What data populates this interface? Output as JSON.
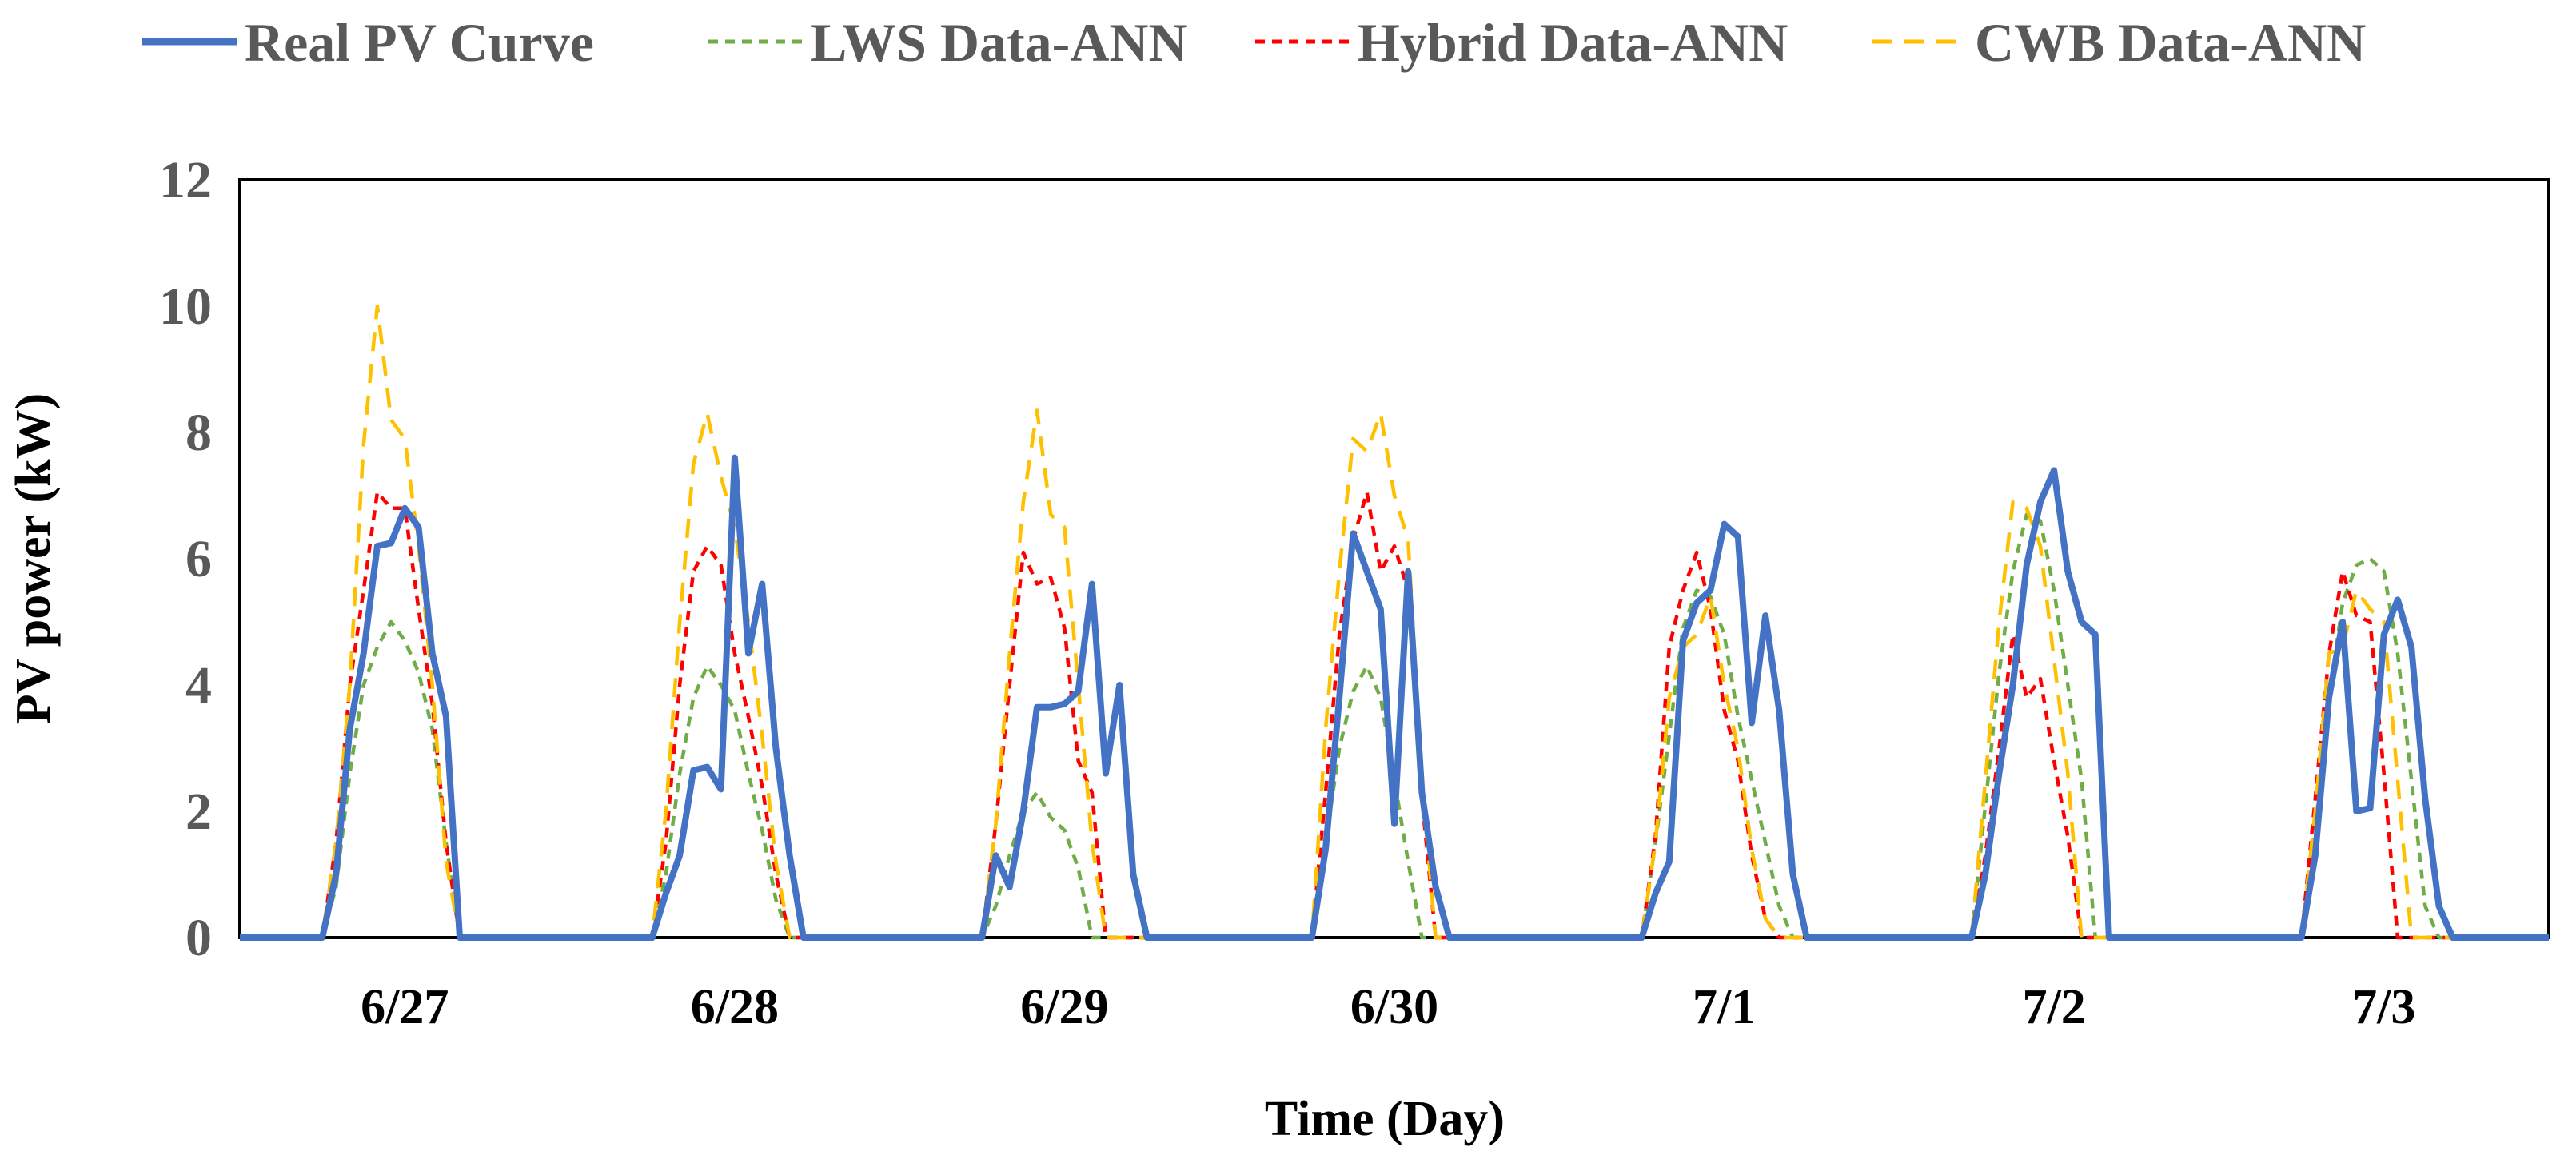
{
  "chart_data": {
    "type": "line",
    "title": "",
    "xlabel": "Time (Day)",
    "ylabel": "PV power (kW)",
    "ylim": [
      0,
      12
    ],
    "yticks": [
      "0",
      "2",
      "4",
      "6",
      "8",
      "10",
      "12"
    ],
    "xlim": [
      0,
      168
    ],
    "categories": [
      "6/27",
      "6/28",
      "6/29",
      "6/30",
      "7/1",
      "7/2",
      "7/3"
    ],
    "grid": false,
    "legend": "top",
    "series": [
      {
        "name": "Real PV Curve",
        "color": "#4472C4",
        "style": "solid",
        "points": [
          [
            0,
            0
          ],
          [
            6,
            0
          ],
          [
            7,
            1
          ],
          [
            8,
            3.3
          ],
          [
            9,
            4.5
          ],
          [
            10,
            6.2
          ],
          [
            11,
            6.25
          ],
          [
            12,
            6.8
          ],
          [
            13,
            6.5
          ],
          [
            14,
            4.5
          ],
          [
            15,
            3.5
          ],
          [
            16,
            0
          ],
          [
            24,
            0
          ],
          [
            30,
            0
          ],
          [
            31,
            0.7
          ],
          [
            32,
            1.3
          ],
          [
            33,
            2.65
          ],
          [
            34,
            2.7
          ],
          [
            35,
            2.35
          ],
          [
            36,
            7.6
          ],
          [
            37,
            4.5
          ],
          [
            38,
            5.6
          ],
          [
            39,
            3
          ],
          [
            40,
            1.3
          ],
          [
            41,
            0
          ],
          [
            48,
            0
          ],
          [
            54,
            0
          ],
          [
            55,
            1.3
          ],
          [
            56,
            0.8
          ],
          [
            57,
            2
          ],
          [
            58,
            3.65
          ],
          [
            59,
            3.65
          ],
          [
            60,
            3.7
          ],
          [
            61,
            3.9
          ],
          [
            62,
            5.6
          ],
          [
            63,
            2.6
          ],
          [
            64,
            4
          ],
          [
            65,
            1
          ],
          [
            66,
            0
          ],
          [
            72,
            0
          ],
          [
            78,
            0
          ],
          [
            79,
            1.4
          ],
          [
            80,
            3.8
          ],
          [
            81,
            6.4
          ],
          [
            82,
            5.8
          ],
          [
            83,
            5.2
          ],
          [
            84,
            1.8
          ],
          [
            85,
            5.8
          ],
          [
            86,
            2.3
          ],
          [
            87,
            0.8
          ],
          [
            88,
            0
          ],
          [
            96,
            0
          ],
          [
            102,
            0
          ],
          [
            103,
            0.7
          ],
          [
            104,
            1.2
          ],
          [
            105,
            4.7
          ],
          [
            106,
            5.3
          ],
          [
            107,
            5.5
          ],
          [
            108,
            6.55
          ],
          [
            109,
            6.35
          ],
          [
            110,
            3.4
          ],
          [
            111,
            5.1
          ],
          [
            112,
            3.6
          ],
          [
            113,
            1
          ],
          [
            114,
            0
          ],
          [
            120,
            0
          ],
          [
            126,
            0
          ],
          [
            127,
            1
          ],
          [
            128,
            2.6
          ],
          [
            129,
            4
          ],
          [
            130,
            5.9
          ],
          [
            131,
            6.9
          ],
          [
            132,
            7.4
          ],
          [
            133,
            5.8
          ],
          [
            134,
            5
          ],
          [
            135,
            4.8
          ],
          [
            136,
            0
          ],
          [
            144,
            0
          ],
          [
            150,
            0
          ],
          [
            151,
            1.3
          ],
          [
            152,
            3.8
          ],
          [
            153,
            5
          ],
          [
            154,
            2
          ],
          [
            155,
            2.05
          ],
          [
            156,
            4.8
          ],
          [
            157,
            5.35
          ],
          [
            158,
            4.6
          ],
          [
            159,
            2.2
          ],
          [
            160,
            0.5
          ],
          [
            161,
            0
          ],
          [
            168,
            0
          ]
        ]
      },
      {
        "name": "LWS Data-ANN",
        "color": "#70AD47",
        "style": "dashed",
        "points": [
          [
            0,
            0
          ],
          [
            6,
            0
          ],
          [
            7,
            0.8
          ],
          [
            8,
            2.6
          ],
          [
            9,
            4
          ],
          [
            10,
            4.6
          ],
          [
            11,
            5
          ],
          [
            12,
            4.7
          ],
          [
            13,
            4.2
          ],
          [
            14,
            3.3
          ],
          [
            15,
            1.5
          ],
          [
            16,
            0
          ],
          [
            24,
            0
          ],
          [
            30,
            0
          ],
          [
            31,
            1
          ],
          [
            32,
            2.6
          ],
          [
            33,
            3.8
          ],
          [
            34,
            4.3
          ],
          [
            35,
            4
          ],
          [
            36,
            3.6
          ],
          [
            37,
            2.6
          ],
          [
            38,
            1.7
          ],
          [
            39,
            0.6
          ],
          [
            40,
            0
          ],
          [
            48,
            0
          ],
          [
            54,
            0
          ],
          [
            55,
            0.5
          ],
          [
            56,
            1.3
          ],
          [
            57,
            2
          ],
          [
            58,
            2.3
          ],
          [
            59,
            1.9
          ],
          [
            60,
            1.7
          ],
          [
            61,
            1.1
          ],
          [
            62,
            0
          ],
          [
            72,
            0
          ],
          [
            78,
            0
          ],
          [
            79,
            1.5
          ],
          [
            80,
            3
          ],
          [
            81,
            3.9
          ],
          [
            82,
            4.3
          ],
          [
            83,
            3.8
          ],
          [
            84,
            2.5
          ],
          [
            85,
            1.2
          ],
          [
            86,
            0
          ],
          [
            96,
            0
          ],
          [
            102,
            0
          ],
          [
            103,
            1.5
          ],
          [
            104,
            3.2
          ],
          [
            105,
            4.9
          ],
          [
            106,
            5.5
          ],
          [
            107,
            5.4
          ],
          [
            108,
            4.8
          ],
          [
            109,
            3.5
          ],
          [
            110,
            2.5
          ],
          [
            111,
            1.5
          ],
          [
            112,
            0.5
          ],
          [
            113,
            0
          ],
          [
            120,
            0
          ],
          [
            126,
            0
          ],
          [
            127,
            2.1
          ],
          [
            128,
            4.2
          ],
          [
            129,
            5.8
          ],
          [
            130,
            6.7
          ],
          [
            131,
            6.6
          ],
          [
            132,
            5.5
          ],
          [
            133,
            4
          ],
          [
            134,
            2.5
          ],
          [
            135,
            0
          ],
          [
            144,
            0
          ],
          [
            150,
            0
          ],
          [
            151,
            1.7
          ],
          [
            152,
            3.8
          ],
          [
            153,
            5.3
          ],
          [
            154,
            5.9
          ],
          [
            155,
            6
          ],
          [
            156,
            5.8
          ],
          [
            157,
            4.5
          ],
          [
            158,
            2.5
          ],
          [
            159,
            0.5
          ],
          [
            160,
            0
          ],
          [
            168,
            0
          ]
        ]
      },
      {
        "name": "Hybrid Data-ANN",
        "color": "#FF0000",
        "style": "dashed",
        "points": [
          [
            0,
            0
          ],
          [
            6,
            0
          ],
          [
            7,
            1.5
          ],
          [
            8,
            4
          ],
          [
            9,
            5.5
          ],
          [
            10,
            7.05
          ],
          [
            11,
            6.8
          ],
          [
            12,
            6.8
          ],
          [
            13,
            5.2
          ],
          [
            14,
            3.7
          ],
          [
            15,
            1.5
          ],
          [
            16,
            0
          ],
          [
            24,
            0
          ],
          [
            30,
            0
          ],
          [
            31,
            1.5
          ],
          [
            32,
            4
          ],
          [
            33,
            5.8
          ],
          [
            34,
            6.2
          ],
          [
            35,
            5.9
          ],
          [
            36,
            4.5
          ],
          [
            37,
            3.5
          ],
          [
            38,
            2.4
          ],
          [
            39,
            1
          ],
          [
            40,
            0
          ],
          [
            48,
            0
          ],
          [
            54,
            0
          ],
          [
            55,
            1.8
          ],
          [
            56,
            4
          ],
          [
            57,
            6.1
          ],
          [
            58,
            5.6
          ],
          [
            59,
            5.7
          ],
          [
            60,
            4.9
          ],
          [
            61,
            2.8
          ],
          [
            62,
            2.3
          ],
          [
            63,
            0
          ],
          [
            72,
            0
          ],
          [
            78,
            0
          ],
          [
            79,
            2.3
          ],
          [
            80,
            4.8
          ],
          [
            81,
            6.3
          ],
          [
            82,
            7.05
          ],
          [
            83,
            5.8
          ],
          [
            84,
            6.2
          ],
          [
            85,
            5.5
          ],
          [
            86,
            2.2
          ],
          [
            87,
            0
          ],
          [
            96,
            0
          ],
          [
            102,
            0
          ],
          [
            103,
            1.6
          ],
          [
            104,
            4.6
          ],
          [
            105,
            5.5
          ],
          [
            106,
            6.1
          ],
          [
            107,
            5.2
          ],
          [
            108,
            3.6
          ],
          [
            109,
            2.8
          ],
          [
            110,
            1.3
          ],
          [
            111,
            0.3
          ],
          [
            112,
            0
          ],
          [
            120,
            0
          ],
          [
            126,
            0
          ],
          [
            127,
            1.3
          ],
          [
            128,
            3
          ],
          [
            129,
            4.8
          ],
          [
            130,
            3.8
          ],
          [
            131,
            4.1
          ],
          [
            132,
            2.8
          ],
          [
            133,
            1.6
          ],
          [
            134,
            0
          ],
          [
            144,
            0
          ],
          [
            150,
            0
          ],
          [
            151,
            2.2
          ],
          [
            152,
            4.5
          ],
          [
            153,
            5.8
          ],
          [
            154,
            5.1
          ],
          [
            155,
            5
          ],
          [
            156,
            2.6
          ],
          [
            157,
            0
          ],
          [
            168,
            0
          ]
        ]
      },
      {
        "name": "CWB Data-ANN",
        "color": "#FFC000",
        "style": "dashed",
        "points": [
          [
            0,
            0
          ],
          [
            6,
            0
          ],
          [
            7,
            1.5
          ],
          [
            8,
            4
          ],
          [
            9,
            7.8
          ],
          [
            10,
            10
          ],
          [
            11,
            8.2
          ],
          [
            12,
            7.9
          ],
          [
            13,
            6.2
          ],
          [
            14,
            4
          ],
          [
            15,
            1.2
          ],
          [
            16,
            0
          ],
          [
            24,
            0
          ],
          [
            30,
            0
          ],
          [
            31,
            2
          ],
          [
            32,
            5
          ],
          [
            33,
            7.5
          ],
          [
            34,
            8.3
          ],
          [
            35,
            7.3
          ],
          [
            36,
            6.5
          ],
          [
            37,
            5
          ],
          [
            38,
            3.2
          ],
          [
            39,
            1.2
          ],
          [
            40,
            0
          ],
          [
            48,
            0
          ],
          [
            54,
            0
          ],
          [
            55,
            1.8
          ],
          [
            56,
            4.5
          ],
          [
            57,
            6.9
          ],
          [
            58,
            8.35
          ],
          [
            59,
            6.7
          ],
          [
            60,
            6.5
          ],
          [
            61,
            4
          ],
          [
            62,
            1.5
          ],
          [
            63,
            0
          ],
          [
            72,
            0
          ],
          [
            78,
            0
          ],
          [
            79,
            3.3
          ],
          [
            80,
            5.8
          ],
          [
            81,
            7.9
          ],
          [
            82,
            7.7
          ],
          [
            83,
            8.3
          ],
          [
            84,
            7
          ],
          [
            85,
            6.3
          ],
          [
            86,
            2.5
          ],
          [
            87,
            0
          ],
          [
            96,
            0
          ],
          [
            102,
            0
          ],
          [
            103,
            1.5
          ],
          [
            104,
            3.8
          ],
          [
            105,
            4.6
          ],
          [
            106,
            4.8
          ],
          [
            107,
            5.4
          ],
          [
            108,
            4
          ],
          [
            109,
            3
          ],
          [
            110,
            1.4
          ],
          [
            111,
            0.3
          ],
          [
            112,
            0
          ],
          [
            120,
            0
          ],
          [
            126,
            0
          ],
          [
            127,
            2.5
          ],
          [
            128,
            5
          ],
          [
            129,
            6.9
          ],
          [
            130,
            6.8
          ],
          [
            131,
            6.2
          ],
          [
            132,
            4.4
          ],
          [
            133,
            2.6
          ],
          [
            134,
            0
          ],
          [
            144,
            0
          ],
          [
            150,
            0
          ],
          [
            151,
            2
          ],
          [
            152,
            4.5
          ],
          [
            153,
            4.6
          ],
          [
            154,
            5.5
          ],
          [
            155,
            5.2
          ],
          [
            156,
            5
          ],
          [
            157,
            2.5
          ],
          [
            158,
            0
          ],
          [
            168,
            0
          ]
        ]
      }
    ]
  }
}
